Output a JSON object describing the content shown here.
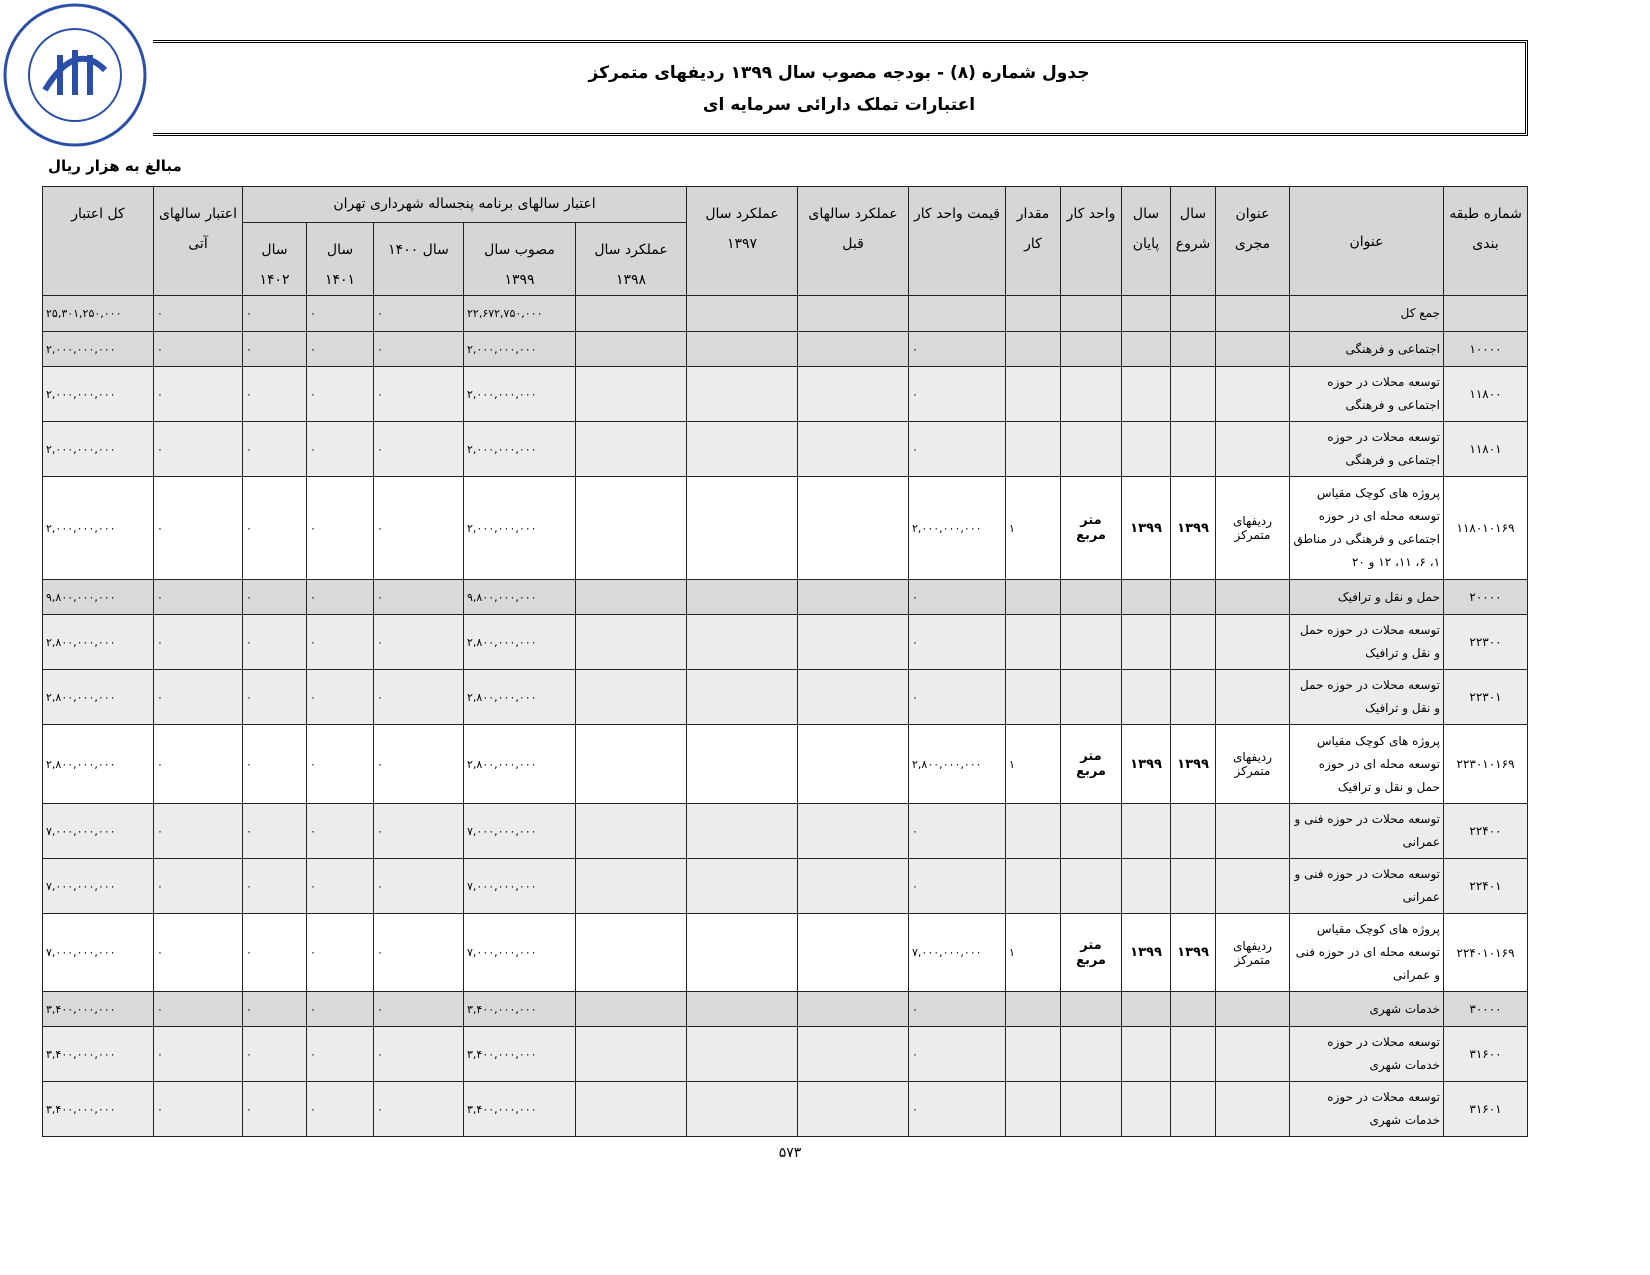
{
  "seal": {
    "text": "معاونت شورای اسلامی شهر تهران"
  },
  "title": {
    "line1": "جدول شماره (۸) - بودجه مصوب سال ۱۳۹۹ ردیفهای متمرکز",
    "line2": "اعتبارات تملک دارائی سرمایه ای"
  },
  "units": "مبالغ به هزار ریال",
  "headers": {
    "code": "شماره طبقه بندی",
    "title": "عنوان",
    "exec": "عنوان مجری",
    "start": "سال شروع",
    "end": "سال پایان",
    "unit": "واحد کار",
    "qty": "مقدار کار",
    "price": "قیمت واحد کار",
    "prev": "عملکرد سالهای قبل",
    "y1397": "عملکرد سال ۱۳۹۷",
    "plan": "اعتبار سالهای برنامه پنجساله شهرداری تهران",
    "y1398": "عملکرد سال ۱۳۹۸",
    "y1399": "مصوب سال ۱۳۹۹",
    "y1400": "سال ۱۴۰۰",
    "y1401": "سال ۱۴۰۱",
    "y1402": "سال ۱۴۰۲",
    "future": "اعتبار سالهای آتی",
    "total": "کل اعتبار"
  },
  "rows": [
    {
      "type": "sum",
      "code": "",
      "title": "جمع کل",
      "exec": "",
      "start": "",
      "end": "",
      "unit": "",
      "qty": "",
      "price": "",
      "y1399": "۲۲,۶۷۲,۷۵۰,۰۰۰",
      "y1400": "٠",
      "y1401": "٠",
      "y1402": "٠",
      "future": "٠",
      "total": "۲۵,۳۰۱,۲۵۰,۰۰۰"
    },
    {
      "type": "sum",
      "code": "۱۰۰۰۰",
      "title": "اجتماعی و فرهنگی",
      "exec": "",
      "start": "",
      "end": "",
      "unit": "",
      "qty": "",
      "price": "٠",
      "y1399": "۲,۰۰۰,۰۰۰,۰۰۰",
      "y1400": "٠",
      "y1401": "٠",
      "y1402": "٠",
      "future": "٠",
      "total": "۲,۰۰۰,۰۰۰,۰۰۰"
    },
    {
      "type": "sub",
      "code": "۱۱۸۰۰",
      "title": "توسعه محلات در حوزه اجتماعی و فرهنگی",
      "exec": "",
      "start": "",
      "end": "",
      "unit": "",
      "qty": "",
      "price": "٠",
      "y1399": "۲,۰۰۰,۰۰۰,۰۰۰",
      "y1400": "٠",
      "y1401": "٠",
      "y1402": "٠",
      "future": "٠",
      "total": "۲,۰۰۰,۰۰۰,۰۰۰"
    },
    {
      "type": "sub",
      "code": "۱۱۸۰۱",
      "title": "توسعه محلات در حوزه اجتماعی و فرهنگی",
      "exec": "",
      "start": "",
      "end": "",
      "unit": "",
      "qty": "",
      "price": "٠",
      "y1399": "۲,۰۰۰,۰۰۰,۰۰۰",
      "y1400": "٠",
      "y1401": "٠",
      "y1402": "٠",
      "future": "٠",
      "total": "۲,۰۰۰,۰۰۰,۰۰۰"
    },
    {
      "type": "proj",
      "code": "۱۱۸۰۱۰۱۶۹",
      "title": "پروژه های کوچک مقیاس توسعه محله ای در حوزه اجتماعی و فرهنگی در مناطق ۱، ۶، ۱۱، ۱۲ و ۲۰",
      "exec": "ردیفهای متمرکز",
      "start": "۱۳۹۹",
      "end": "۱۳۹۹",
      "unit": "متر مربع",
      "qty": "۱",
      "price": "۲,۰۰۰,۰۰۰,۰۰۰",
      "y1399": "۲,۰۰۰,۰۰۰,۰۰۰",
      "y1400": "٠",
      "y1401": "٠",
      "y1402": "٠",
      "future": "٠",
      "total": "۲,۰۰۰,۰۰۰,۰۰۰"
    },
    {
      "type": "sum",
      "code": "۲۰۰۰۰",
      "title": "حمل و نقل و ترافیک",
      "exec": "",
      "start": "",
      "end": "",
      "unit": "",
      "qty": "",
      "price": "٠",
      "y1399": "۹,۸۰۰,۰۰۰,۰۰۰",
      "y1400": "٠",
      "y1401": "٠",
      "y1402": "٠",
      "future": "٠",
      "total": "۹,۸۰۰,۰۰۰,۰۰۰"
    },
    {
      "type": "sub",
      "code": "۲۲۳۰۰",
      "title": "توسعه محلات در حوزه حمل و نقل و ترافیک",
      "exec": "",
      "start": "",
      "end": "",
      "unit": "",
      "qty": "",
      "price": "٠",
      "y1399": "۲,۸۰۰,۰۰۰,۰۰۰",
      "y1400": "٠",
      "y1401": "٠",
      "y1402": "٠",
      "future": "٠",
      "total": "۲,۸۰۰,۰۰۰,۰۰۰"
    },
    {
      "type": "sub",
      "code": "۲۲۳۰۱",
      "title": "توسعه محلات در حوزه حمل و نقل و ترافیک",
      "exec": "",
      "start": "",
      "end": "",
      "unit": "",
      "qty": "",
      "price": "٠",
      "y1399": "۲,۸۰۰,۰۰۰,۰۰۰",
      "y1400": "٠",
      "y1401": "٠",
      "y1402": "٠",
      "future": "٠",
      "total": "۲,۸۰۰,۰۰۰,۰۰۰"
    },
    {
      "type": "proj",
      "code": "۲۲۳۰۱۰۱۶۹",
      "title": "پروژه های کوچک مقیاس توسعه محله ای در حوزه حمل و نقل و ترافیک",
      "exec": "ردیفهای متمرکز",
      "start": "۱۳۹۹",
      "end": "۱۳۹۹",
      "unit": "متر مربع",
      "qty": "۱",
      "price": "۲,۸۰۰,۰۰۰,۰۰۰",
      "y1399": "۲,۸۰۰,۰۰۰,۰۰۰",
      "y1400": "٠",
      "y1401": "٠",
      "y1402": "٠",
      "future": "٠",
      "total": "۲,۸۰۰,۰۰۰,۰۰۰"
    },
    {
      "type": "sub",
      "code": "۲۲۴۰۰",
      "title": "توسعه محلات در حوزه فنی و عمرانی",
      "exec": "",
      "start": "",
      "end": "",
      "unit": "",
      "qty": "",
      "price": "٠",
      "y1399": "۷,۰۰۰,۰۰۰,۰۰۰",
      "y1400": "٠",
      "y1401": "٠",
      "y1402": "٠",
      "future": "٠",
      "total": "۷,۰۰۰,۰۰۰,۰۰۰"
    },
    {
      "type": "sub",
      "code": "۲۲۴۰۱",
      "title": "توسعه محلات در حوزه فنی و عمرانی",
      "exec": "",
      "start": "",
      "end": "",
      "unit": "",
      "qty": "",
      "price": "٠",
      "y1399": "۷,۰۰۰,۰۰۰,۰۰۰",
      "y1400": "٠",
      "y1401": "٠",
      "y1402": "٠",
      "future": "٠",
      "total": "۷,۰۰۰,۰۰۰,۰۰۰"
    },
    {
      "type": "proj",
      "code": "۲۲۴۰۱۰۱۶۹",
      "title": "پروژه های کوچک مقیاس توسعه محله ای در حوزه فنی و عمرانی",
      "exec": "ردیفهای متمرکز",
      "start": "۱۳۹۹",
      "end": "۱۳۹۹",
      "unit": "متر مربع",
      "qty": "۱",
      "price": "۷,۰۰۰,۰۰۰,۰۰۰",
      "y1399": "۷,۰۰۰,۰۰۰,۰۰۰",
      "y1400": "٠",
      "y1401": "٠",
      "y1402": "٠",
      "future": "٠",
      "total": "۷,۰۰۰,۰۰۰,۰۰۰"
    },
    {
      "type": "sum",
      "code": "۳۰۰۰۰",
      "title": "خدمات شهری",
      "exec": "",
      "start": "",
      "end": "",
      "unit": "",
      "qty": "",
      "price": "٠",
      "y1399": "۳,۴۰۰,۰۰۰,۰۰۰",
      "y1400": "٠",
      "y1401": "٠",
      "y1402": "٠",
      "future": "٠",
      "total": "۳,۴۰۰,۰۰۰,۰۰۰"
    },
    {
      "type": "sub",
      "code": "۳۱۶۰۰",
      "title": "توسعه محلات در حوزه خدمات شهری",
      "exec": "",
      "start": "",
      "end": "",
      "unit": "",
      "qty": "",
      "price": "٠",
      "y1399": "۳,۴۰۰,۰۰۰,۰۰۰",
      "y1400": "٠",
      "y1401": "٠",
      "y1402": "٠",
      "future": "٠",
      "total": "۳,۴۰۰,۰۰۰,۰۰۰"
    },
    {
      "type": "sub",
      "code": "۳۱۶۰۱",
      "title": "توسعه محلات در حوزه خدمات شهری",
      "exec": "",
      "start": "",
      "end": "",
      "unit": "",
      "qty": "",
      "price": "٠",
      "y1399": "۳,۴۰۰,۰۰۰,۰۰۰",
      "y1400": "٠",
      "y1401": "٠",
      "y1402": "٠",
      "future": "٠",
      "total": "۳,۴۰۰,۰۰۰,۰۰۰"
    }
  ],
  "page_number": "۵۷۳"
}
